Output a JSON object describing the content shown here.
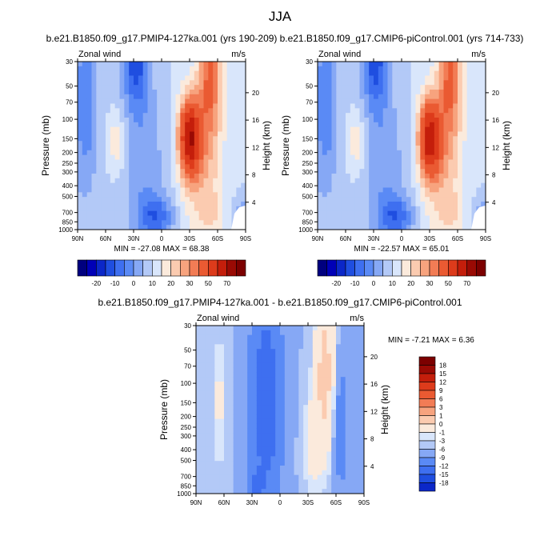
{
  "figure": {
    "title": "JJA"
  },
  "colors": {
    "diverging": [
      "#00007f",
      "#0000b7",
      "#0b27c8",
      "#1f4ee0",
      "#3e6ff0",
      "#5a8af5",
      "#86a8f5",
      "#b3c9f7",
      "#d9e6fb",
      "#fbeadc",
      "#fbcbb0",
      "#f7a37e",
      "#f27c55",
      "#ea5a32",
      "#dd3b1b",
      "#c41e0b",
      "#9a0a04",
      "#7c0000"
    ]
  },
  "chart_data": [
    {
      "type": "heatmap",
      "id": "panel-left",
      "title": "b.e21.B1850.f09_g17.PMIP4-127ka.001 (yrs 190-209)",
      "left_label": "Zonal wind",
      "right_label": "m/s",
      "ylabel": "Pressure (mb)",
      "y2label": "Height (km)",
      "x_ticks": [
        "90N",
        "60N",
        "30N",
        "0",
        "30S",
        "60S",
        "90S"
      ],
      "y_ticks": [
        "30",
        "50",
        "70",
        "100",
        "150",
        "200",
        "250",
        "300",
        "400",
        "500",
        "700",
        "850",
        "1000"
      ],
      "y2_ticks": [
        "20",
        "16",
        "12",
        "8",
        "4"
      ],
      "xlim": [
        90,
        -90
      ],
      "ylim": [
        1000,
        30
      ],
      "yscale": "log",
      "stats_text": "MIN = -27.08  MAX =  68.38",
      "min": -27.08,
      "max": 68.38,
      "colorbar": {
        "orientation": "horizontal",
        "labels": [
          "-20",
          "-10",
          "0",
          "10",
          "20",
          "30",
          "50",
          "70"
        ]
      }
    },
    {
      "type": "heatmap",
      "id": "panel-right",
      "title": "b.e21.B1850.f09_g17.CMIP6-piControl.001 (yrs 714-733)",
      "left_label": "Zonal wind",
      "right_label": "m/s",
      "ylabel": "Pressure (mb)",
      "y2label": "Height (km)",
      "x_ticks": [
        "90N",
        "60N",
        "30N",
        "0",
        "30S",
        "60S",
        "90S"
      ],
      "y_ticks": [
        "30",
        "50",
        "70",
        "100",
        "150",
        "200",
        "250",
        "300",
        "400",
        "500",
        "700",
        "850",
        "1000"
      ],
      "y2_ticks": [
        "20",
        "16",
        "12",
        "8",
        "4"
      ],
      "xlim": [
        90,
        -90
      ],
      "ylim": [
        1000,
        30
      ],
      "yscale": "log",
      "stats_text": "MIN = -22.57  MAX =  65.01",
      "min": -22.57,
      "max": 65.01,
      "colorbar": {
        "orientation": "horizontal",
        "labels": [
          "-20",
          "-10",
          "0",
          "10",
          "20",
          "30",
          "50",
          "70"
        ]
      }
    },
    {
      "type": "heatmap",
      "id": "panel-diff",
      "title": "b.e21.B1850.f09_g17.PMIP4-127ka.001 - b.e21.B1850.f09_g17.CMIP6-piControl.001",
      "left_label": "Zonal wind",
      "right_label": "m/s",
      "ylabel": "Pressure (mb)",
      "y2label": "Height (km)",
      "x_ticks": [
        "90N",
        "60N",
        "30N",
        "0",
        "30S",
        "60S",
        "90S"
      ],
      "y_ticks": [
        "30",
        "50",
        "70",
        "100",
        "150",
        "200",
        "250",
        "300",
        "400",
        "500",
        "700",
        "850",
        "1000"
      ],
      "y2_ticks": [
        "20",
        "16",
        "12",
        "8",
        "4"
      ],
      "xlim": [
        90,
        -90
      ],
      "ylim": [
        1000,
        30
      ],
      "yscale": "log",
      "stats_text": "MIN = -7.21  MAX =   6.36",
      "min": -7.21,
      "max": 6.36,
      "colorbar": {
        "orientation": "vertical",
        "labels": [
          "18",
          "15",
          "12",
          "9",
          "6",
          "3",
          "1",
          "0",
          "-1",
          "-3",
          "-6",
          "-9",
          "-12",
          "-15",
          "-18"
        ]
      }
    }
  ]
}
